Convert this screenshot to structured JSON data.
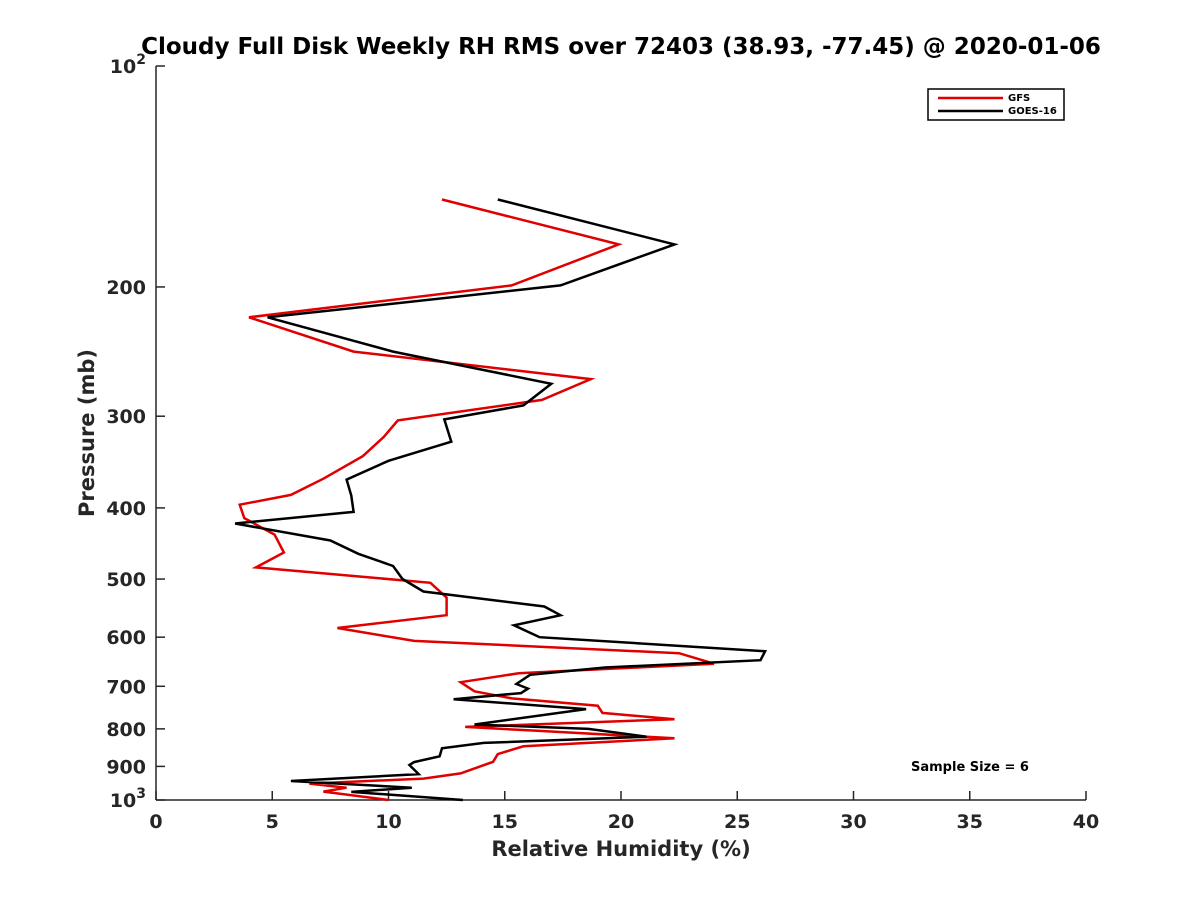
{
  "chart_data": {
    "type": "line",
    "title": "Cloudy Full Disk Weekly RH RMS over 72403 (38.93, -77.45) @ 2020-01-06",
    "xlabel": "Relative Humidity (%)",
    "ylabel": "Pressure (mb)",
    "xlim": [
      0,
      40
    ],
    "ylim": [
      100,
      1000
    ],
    "y_scale": "log",
    "y_reversed": true,
    "grid": false,
    "legend_position": "top-right",
    "x_ticks": [
      "0",
      "5",
      "10",
      "15",
      "20",
      "25",
      "30",
      "35",
      "40"
    ],
    "y_ticks": [
      {
        "value": 100,
        "base": "10",
        "exp": "2"
      },
      {
        "value": 200,
        "label": "200"
      },
      {
        "value": 300,
        "label": "300"
      },
      {
        "value": 400,
        "label": "400"
      },
      {
        "value": 500,
        "label": "500"
      },
      {
        "value": 600,
        "label": "600"
      },
      {
        "value": 700,
        "label": "700"
      },
      {
        "value": 800,
        "label": "800"
      },
      {
        "value": 900,
        "label": "900"
      },
      {
        "value": 1000,
        "base": "10",
        "exp": "3"
      }
    ],
    "series": [
      {
        "name": "GFS",
        "color": "#e00000",
        "points": [
          [
            12.3,
            152
          ],
          [
            19.9,
            175
          ],
          [
            15.3,
            199
          ],
          [
            4.0,
            220
          ],
          [
            8.5,
            245
          ],
          [
            18.7,
            267
          ],
          [
            16.6,
            285
          ],
          [
            10.4,
            304
          ],
          [
            9.8,
            320
          ],
          [
            8.9,
            340
          ],
          [
            7.2,
            365
          ],
          [
            5.8,
            384
          ],
          [
            3.6,
            396
          ],
          [
            3.8,
            413
          ],
          [
            5.1,
            435
          ],
          [
            5.5,
            460
          ],
          [
            4.3,
            482
          ],
          [
            11.8,
            506
          ],
          [
            12.5,
            530
          ],
          [
            12.5,
            560
          ],
          [
            7.8,
            583
          ],
          [
            11.1,
            607
          ],
          [
            22.5,
            631
          ],
          [
            24.0,
            652
          ],
          [
            15.6,
            672
          ],
          [
            13.1,
            691
          ],
          [
            13.7,
            711
          ],
          [
            15.3,
            727
          ],
          [
            19.0,
            744
          ],
          [
            19.2,
            761
          ],
          [
            22.3,
            776
          ],
          [
            13.3,
            795
          ],
          [
            16.5,
            805
          ],
          [
            22.3,
            824
          ],
          [
            15.8,
            845
          ],
          [
            14.7,
            866
          ],
          [
            14.5,
            887
          ],
          [
            13.1,
            920
          ],
          [
            11.5,
            935
          ],
          [
            6.6,
            950
          ],
          [
            8.2,
            962
          ],
          [
            7.2,
            974
          ],
          [
            10.0,
            1000
          ]
        ]
      },
      {
        "name": "GOES-16",
        "color": "#000000",
        "points": [
          [
            14.7,
            152
          ],
          [
            22.3,
            175
          ],
          [
            17.4,
            199
          ],
          [
            4.8,
            220
          ],
          [
            10.2,
            245
          ],
          [
            17.0,
            271
          ],
          [
            15.8,
            290
          ],
          [
            12.4,
            303
          ],
          [
            12.7,
            325
          ],
          [
            10.0,
            345
          ],
          [
            8.2,
            366
          ],
          [
            8.4,
            385
          ],
          [
            8.5,
            405
          ],
          [
            3.4,
            420
          ],
          [
            7.5,
            443
          ],
          [
            8.7,
            462
          ],
          [
            10.2,
            480
          ],
          [
            10.6,
            500
          ],
          [
            11.5,
            520
          ],
          [
            16.7,
            545
          ],
          [
            17.4,
            560
          ],
          [
            15.4,
            578
          ],
          [
            16.5,
            600
          ],
          [
            26.2,
            627
          ],
          [
            26.0,
            645
          ],
          [
            19.3,
            660
          ],
          [
            16.1,
            675
          ],
          [
            15.5,
            695
          ],
          [
            16.0,
            705
          ],
          [
            15.7,
            715
          ],
          [
            12.8,
            729
          ],
          [
            18.5,
            752
          ],
          [
            13.7,
            789
          ],
          [
            18.6,
            800
          ],
          [
            21.1,
            820
          ],
          [
            14.1,
            836
          ],
          [
            12.3,
            850
          ],
          [
            12.2,
            872
          ],
          [
            11.1,
            888
          ],
          [
            10.9,
            896
          ],
          [
            11.3,
            922
          ],
          [
            5.8,
            942
          ],
          [
            11.0,
            962
          ],
          [
            8.4,
            975
          ],
          [
            13.2,
            1000
          ]
        ]
      }
    ],
    "legend": [
      {
        "label": "GFS",
        "color": "#e00000"
      },
      {
        "label": "GOES-16",
        "color": "#000000"
      }
    ],
    "annotation": "Sample Size = 6"
  }
}
